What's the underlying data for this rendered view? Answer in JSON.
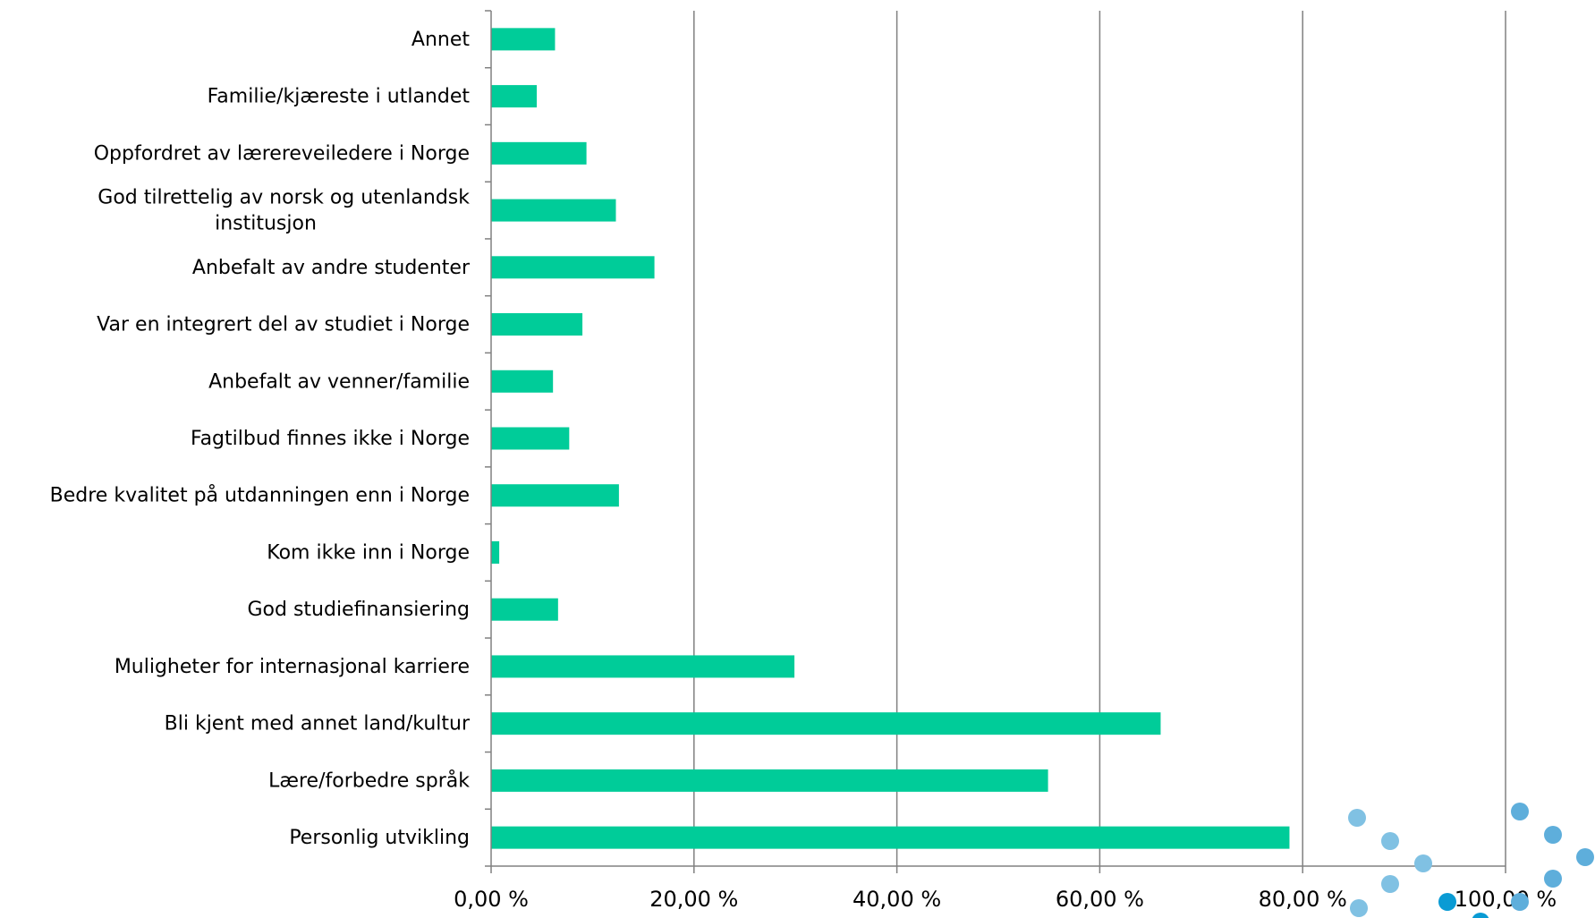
{
  "chart_data": {
    "type": "bar",
    "orientation": "horizontal",
    "categories": [
      "Annet",
      "Familie/kjæreste i utlandet",
      "Oppfordret av lærereveiledere i Norge",
      "God tilrettelig av norsk og utenlandsk institusjon",
      "Anbefalt av andre studenter",
      "Var en integrert del av studiet i Norge",
      "Anbefalt av venner/familie",
      "Fagtilbud finnes ikke i Norge",
      "Bedre kvalitet på utdanningen enn i Norge",
      "Kom ikke inn i Norge",
      "God studiefinansiering",
      "Muligheter for internasjonal karriere",
      "Bli kjent med annet land/kultur",
      "Lære/forbedre språk",
      "Personlig utvikling"
    ],
    "category_lines": [
      [
        "Annet"
      ],
      [
        "Familie/kjæreste i utlandet"
      ],
      [
        "Oppfordret av lærereveiledere i Norge"
      ],
      [
        "God tilrettelig av norsk og utenlandsk",
        "institusjon"
      ],
      [
        "Anbefalt av andre studenter"
      ],
      [
        "Var en integrert del av studiet i Norge"
      ],
      [
        "Anbefalt av venner/familie"
      ],
      [
        "Fagtilbud finnes ikke i Norge"
      ],
      [
        "Bedre kvalitet på utdanningen enn i Norge"
      ],
      [
        "Kom ikke inn i Norge"
      ],
      [
        "God studiefinansiering"
      ],
      [
        "Muligheter for internasjonal karriere"
      ],
      [
        "Bli kjent med annet land/kultur"
      ],
      [
        "Lære/forbedre språk"
      ],
      [
        "Personlig utvikling"
      ]
    ],
    "values": [
      6.3,
      4.5,
      9.4,
      12.3,
      16.1,
      9.0,
      6.1,
      7.7,
      12.6,
      0.8,
      6.6,
      29.9,
      66.0,
      54.9,
      78.7
    ],
    "xlim": [
      0,
      100
    ],
    "xticks": [
      0,
      20,
      40,
      60,
      80,
      100
    ],
    "xtick_labels": [
      "0,00 %",
      "20,00 %",
      "40,00 %",
      "60,00 %",
      "80,00 %",
      "100,00 %"
    ],
    "title": "",
    "xlabel": "",
    "ylabel": "",
    "grid": "vertical",
    "legend": "none",
    "bar_color": "#00cc99",
    "grid_color": "#808080"
  },
  "decoration": {
    "dot_colors": [
      "#80c1e3",
      "#5eaedb",
      "#0a9bd4"
    ]
  }
}
